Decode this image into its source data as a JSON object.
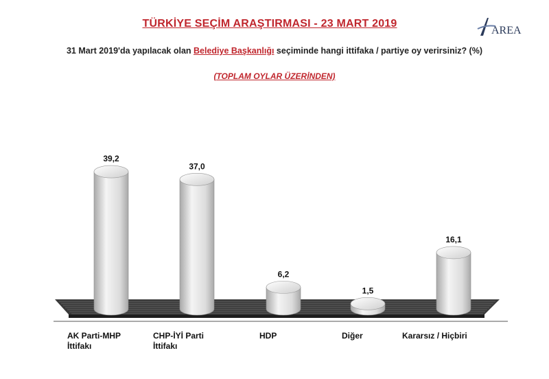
{
  "header": {
    "title": "TÜRKİYE SEÇİM ARAŞTIRMASI - 23 MART 2019",
    "logo_text": "AREA",
    "question_prefix": "31 Mart 2019'da yapılacak olan ",
    "question_highlight": "Belediye Başkanlığı",
    "question_suffix": " seçiminde hangi ittifaka / partiye oy verirsiniz? (%)",
    "subtitle": "(TOPLAM OYLAR ÜZERİNDEN)"
  },
  "colors": {
    "title": "#c0262d",
    "cylinder_light": "#f4f4f4",
    "cylinder_dark": "#a9a9a9",
    "floor": "#3a3a3a"
  },
  "chart_data": {
    "type": "bar",
    "style": "3d-cylinder",
    "categories": [
      "AK Parti-MHP\nİttifakı",
      "CHP-İYİ Parti\nİttifakı",
      "HDP",
      "Diğer",
      "Kararsız / Hiçbiri"
    ],
    "values": [
      39.2,
      37.0,
      6.2,
      1.5,
      16.1
    ],
    "value_labels": [
      "39,2",
      "37,0",
      "6,2",
      "1,5",
      "16,1"
    ],
    "ylim": [
      0,
      40
    ],
    "grid": false,
    "legend": "none"
  }
}
